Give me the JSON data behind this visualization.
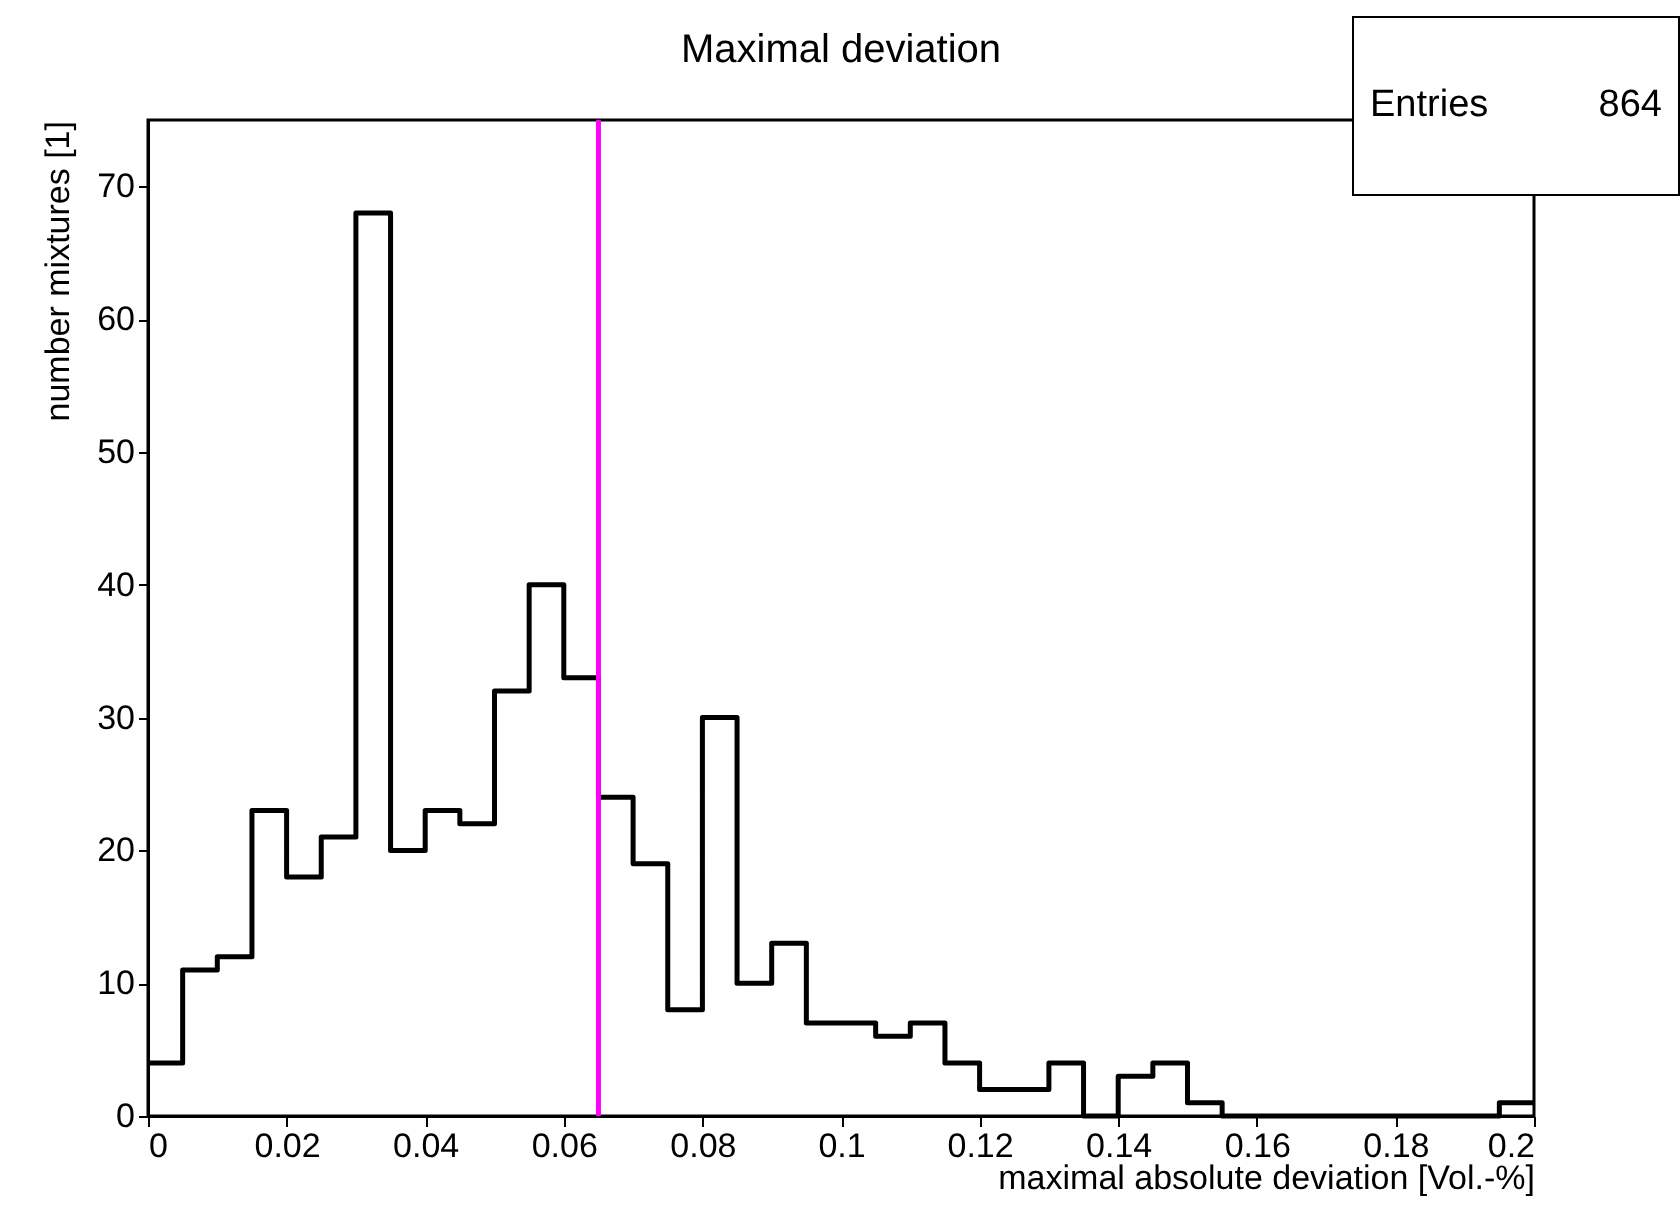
{
  "chart_data": {
    "type": "histogram",
    "title": "Maximal deviation",
    "xlabel": "maximal absolute deviation [Vol.-%]",
    "ylabel": "number mixtures [1]",
    "bins": [
      0,
      0.005,
      0.01,
      0.015,
      0.02,
      0.025,
      0.03,
      0.035,
      0.04,
      0.045,
      0.05,
      0.055,
      0.06,
      0.065,
      0.07,
      0.075,
      0.08,
      0.085,
      0.09,
      0.095,
      0.1,
      0.105,
      0.11,
      0.115,
      0.12,
      0.125,
      0.13,
      0.135,
      0.14,
      0.145,
      0.15,
      0.155,
      0.16,
      0.165,
      0.17,
      0.175,
      0.18,
      0.185,
      0.19,
      0.195,
      0.2
    ],
    "values": [
      4,
      11,
      12,
      23,
      18,
      21,
      68,
      20,
      23,
      22,
      32,
      40,
      33,
      24,
      19,
      8,
      30,
      10,
      13,
      7,
      7,
      6,
      7,
      4,
      2,
      2,
      4,
      0,
      3,
      4,
      1,
      0,
      0,
      0,
      0,
      0,
      0,
      0,
      0,
      1
    ],
    "color": "#000000",
    "xlim": [
      0,
      0.2
    ],
    "xticks": [
      0,
      0.02,
      0.04,
      0.06,
      0.08,
      0.1,
      0.12,
      0.14,
      0.16,
      0.18,
      0.2
    ],
    "ylim": [
      0,
      75
    ],
    "yticks": [
      0,
      10,
      20,
      30,
      40,
      50,
      60,
      70
    ],
    "ref_lines": [
      {
        "axis": "x",
        "value": 0.065,
        "color": "#ff00ff"
      }
    ],
    "annotations": [
      "Entries",
      "864"
    ],
    "grid": false
  }
}
